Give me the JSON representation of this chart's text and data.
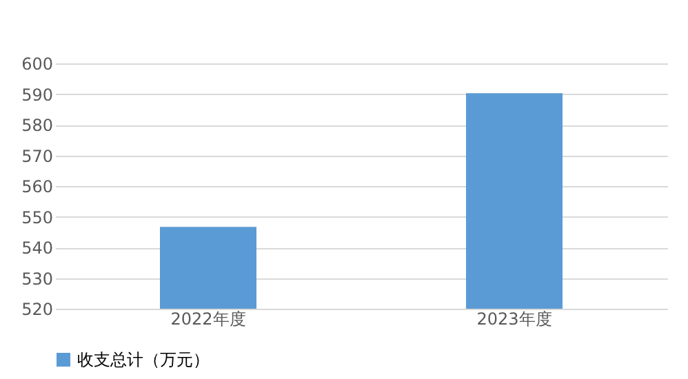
{
  "chart_data": {
    "type": "bar",
    "categories": [
      "2022年度",
      "2023年度"
    ],
    "series": [
      {
        "name": "收支总计（万元）",
        "color": "#5b9bd5",
        "values": [
          546.7,
          590.3
        ]
      }
    ],
    "ylim": [
      520,
      600
    ],
    "yticks": [
      520,
      530,
      540,
      550,
      560,
      570,
      580,
      590,
      600
    ],
    "grid": "y",
    "legend": "bottom"
  }
}
